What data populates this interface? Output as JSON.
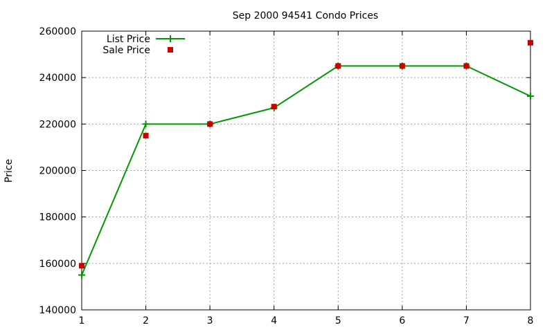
{
  "chart_data": {
    "type": "line",
    "title": "Sep 2000 94541 Condo Prices",
    "xlabel": "",
    "ylabel": "Price",
    "xlim": [
      1,
      8
    ],
    "ylim": [
      140000,
      260000
    ],
    "xticks": [
      1,
      2,
      3,
      4,
      5,
      6,
      7,
      8
    ],
    "yticks": [
      140000,
      160000,
      180000,
      200000,
      220000,
      240000,
      260000
    ],
    "grid": true,
    "legend_position": "top-left",
    "series": [
      {
        "name": "List Price",
        "style": "line+cross",
        "color": "#009900",
        "x": [
          1,
          2,
          3,
          4,
          5,
          6,
          7,
          8
        ],
        "y": [
          155000,
          220000,
          220000,
          227000,
          245000,
          245000,
          245000,
          232000
        ]
      },
      {
        "name": "Sale Price",
        "style": "square",
        "color": "#cc0000",
        "x": [
          1,
          2,
          3,
          4,
          5,
          6,
          7,
          8
        ],
        "y": [
          159000,
          215000,
          220000,
          227500,
          245000,
          245000,
          245000,
          255000
        ]
      }
    ]
  }
}
